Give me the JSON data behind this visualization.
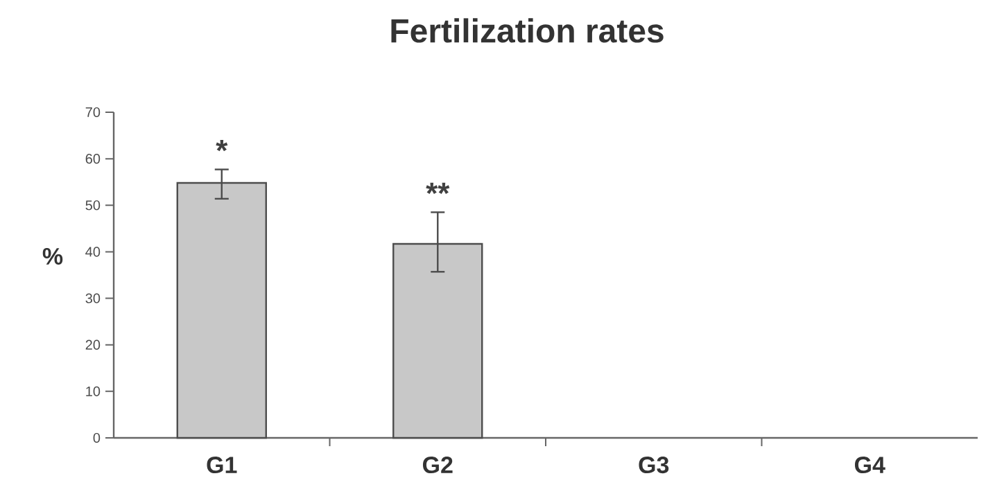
{
  "chart_data": {
    "type": "bar",
    "title": "Fertilization rates",
    "ylabel": "%",
    "categories": [
      "G1",
      "G2",
      "G3",
      "G4"
    ],
    "values": [
      54.8,
      41.7,
      null,
      null
    ],
    "errors": [
      [
        51.4,
        57.7
      ],
      [
        35.7,
        48.5
      ],
      null,
      null
    ],
    "color": "#c8c8c8",
    "ylim": [
      0,
      70
    ],
    "yticks": [
      0,
      10,
      20,
      30,
      40,
      50,
      60,
      70
    ],
    "annotations": [
      "*",
      "**"
    ]
  }
}
